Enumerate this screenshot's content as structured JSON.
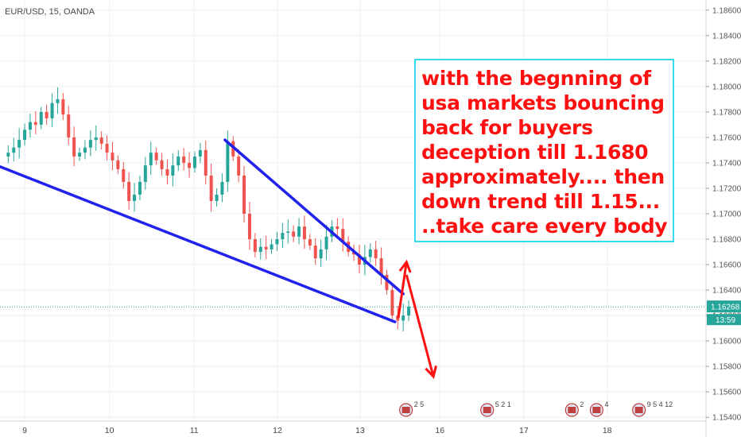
{
  "header": {
    "symbol": "EUR/USD, 15, OANDA"
  },
  "chart_data": {
    "type": "candlestick",
    "symbol": "EUR/USD",
    "interval": "15",
    "source": "OANDA",
    "x_tick_labels": [
      "9",
      "10",
      "11",
      "12",
      "13",
      "16",
      "17",
      "18"
    ],
    "y_tick_labels": [
      "1.18600",
      "1.18400",
      "1.18200",
      "1.18000",
      "1.17800",
      "1.17600",
      "1.17400",
      "1.17200",
      "1.17000",
      "1.16800",
      "1.16600",
      "1.16400",
      "1.16200",
      "1.16000",
      "1.15800",
      "1.15600",
      "1.15400"
    ],
    "ylim": [
      1.1537,
      1.1868
    ],
    "grid": true,
    "last_price": "1.16268",
    "countdown": "13:59",
    "price_path": [
      1.1745,
      1.1748,
      1.1752,
      1.1758,
      1.1766,
      1.1772,
      1.177,
      1.178,
      1.1775,
      1.1787,
      1.179,
      1.1778,
      1.176,
      1.1745,
      1.1748,
      1.1752,
      1.1758,
      1.176,
      1.1755,
      1.1748,
      1.1742,
      1.1735,
      1.1725,
      1.171,
      1.1715,
      1.1725,
      1.1738,
      1.1748,
      1.1742,
      1.1735,
      1.173,
      1.1738,
      1.1745,
      1.174,
      1.1736,
      1.1745,
      1.175,
      1.173,
      1.171,
      1.1715,
      1.1725,
      1.1757,
      1.1745,
      1.173,
      1.17,
      1.168,
      1.167,
      1.1674,
      1.1672,
      1.1676,
      1.168,
      1.1685,
      1.1686,
      1.1682,
      1.169,
      1.168,
      1.1675,
      1.1665,
      1.1672,
      1.1682,
      1.169,
      1.1688,
      1.1678,
      1.167,
      1.1668,
      1.166,
      1.1666,
      1.1672,
      1.1665,
      1.1652,
      1.164,
      1.162,
      1.1616,
      1.162,
      1.1627
    ],
    "trendlines": [
      {
        "color": "#2222ee",
        "points": [
          [
            0,
            1.1737
          ],
          [
            72,
            1.1615
          ]
        ]
      },
      {
        "color": "#2222ee",
        "points": [
          [
            41,
            1.1758
          ],
          [
            73.5,
            1.1637
          ]
        ]
      }
    ],
    "arrows": [
      {
        "color": "#ff1010",
        "from": [
          72.6,
          1.1618
        ],
        "to": [
          74.1,
          1.1662
        ]
      },
      {
        "color": "#ff1010",
        "from": [
          74.1,
          1.1652
        ],
        "to": [
          79,
          1.1572
        ]
      }
    ],
    "annotation": {
      "lines": [
        "with the begnning of",
        "usa markets bouncing",
        "back for buyers",
        "deception till 1.1680",
        "approximately.... then",
        "down trend till 1.15...",
        "..take care every body"
      ]
    },
    "events": [
      {
        "label": "2 5",
        "pos": 0.575
      },
      {
        "label": "5 2 1",
        "pos": 0.69
      },
      {
        "label": "2",
        "pos": 0.81
      },
      {
        "label": "4",
        "pos": 0.845
      },
      {
        "label": "9 5 4 12",
        "pos": 0.905
      }
    ],
    "colors": {
      "up": "#26a69a",
      "down": "#ef5350",
      "trend": "#2222ee",
      "arrow": "#ff1010",
      "last_price": "#26a69a"
    }
  }
}
